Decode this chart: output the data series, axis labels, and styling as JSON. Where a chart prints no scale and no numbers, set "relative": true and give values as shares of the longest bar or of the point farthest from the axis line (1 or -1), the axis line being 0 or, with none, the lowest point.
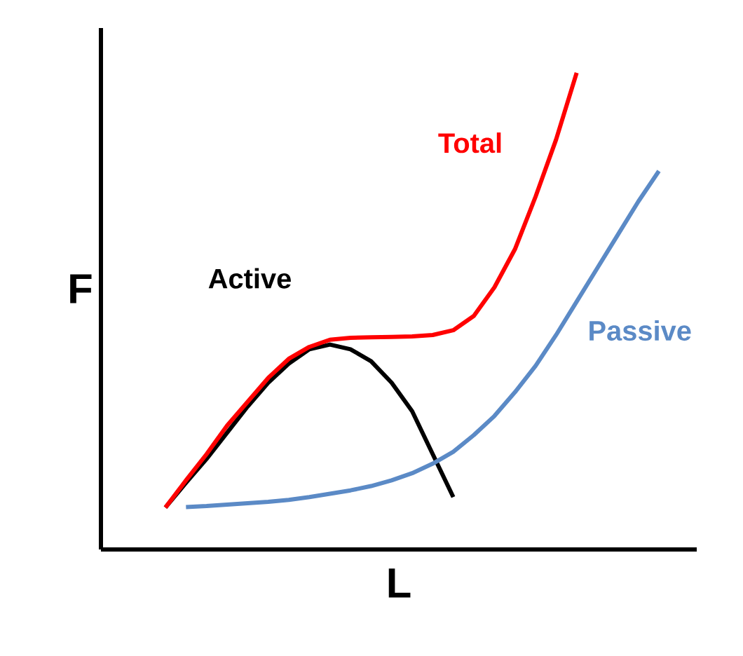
{
  "chart_data": {
    "type": "line",
    "relative": true,
    "xlabel": "L",
    "ylabel": "F",
    "legend": false,
    "marker": "none",
    "line_style": "solid",
    "categories": [
      null,
      null,
      null,
      null,
      null,
      null,
      null,
      null,
      null,
      null,
      null,
      null,
      null,
      null,
      null,
      null,
      null,
      null,
      null,
      null,
      null,
      null,
      null,
      null,
      null
    ],
    "series": [
      {
        "name": "Active",
        "color": "#000000",
        "values": [
          0.088,
          0.14,
          0.19,
          0.245,
          0.3,
          0.35,
          0.39,
          0.42,
          0.43,
          0.42,
          0.395,
          0.35,
          0.29,
          0.2,
          0.11,
          null,
          null,
          null,
          null,
          null,
          null,
          null,
          null,
          null,
          null
        ]
      },
      {
        "name": "Total",
        "color": "#ff0000",
        "values": [
          0.088,
          0.145,
          0.2,
          0.26,
          0.31,
          0.36,
          0.4,
          0.425,
          0.44,
          0.444,
          0.445,
          0.446,
          0.447,
          0.45,
          0.46,
          0.49,
          0.55,
          0.63,
          0.74,
          0.86,
          1.0,
          null,
          null,
          null,
          null
        ]
      },
      {
        "name": "Passive",
        "color": "#5b8ac6",
        "values": [
          null,
          0.089,
          0.091,
          0.094,
          0.097,
          0.1,
          0.104,
          0.11,
          0.117,
          0.124,
          0.133,
          0.145,
          0.16,
          0.18,
          0.205,
          0.24,
          0.28,
          0.33,
          0.385,
          0.45,
          0.52,
          0.59,
          0.66,
          0.73,
          0.794
        ]
      }
    ]
  }
}
